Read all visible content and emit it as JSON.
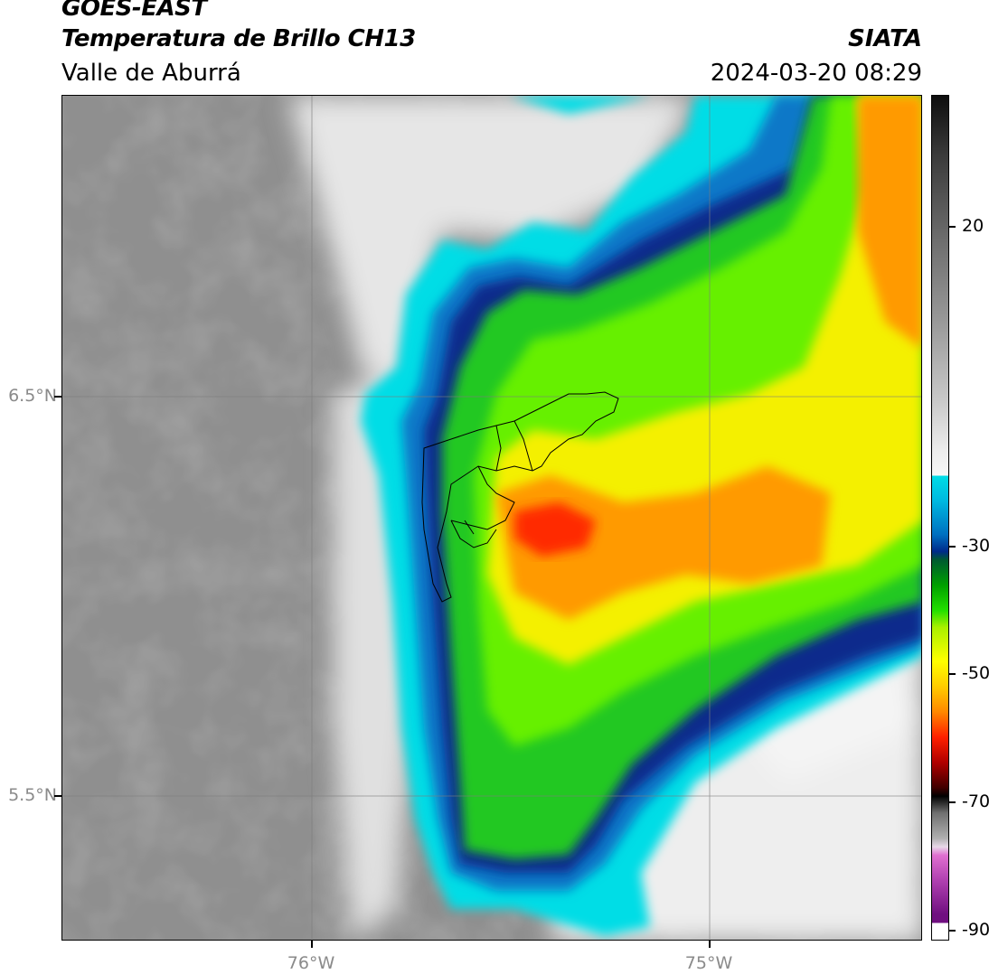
{
  "header": {
    "satellite": "GOES-EAST",
    "product": "Temperatura de Brillo CH13",
    "region": "Valle de Aburrá",
    "agency": "SIATA",
    "datetime": "2024-03-20 08:29"
  },
  "map": {
    "lat_labels": [
      "6.5°N",
      "5.5°N"
    ],
    "lon_labels": [
      "76°W",
      "75°W"
    ],
    "gridlines": true,
    "colors": {
      "clear_sky_gray": "#8c8c8c",
      "cloud_edge_cyan": "#00dde6",
      "cloud_blue": "#0070c0",
      "cloud_navy": "#002a8a",
      "cold_green": "#22e000",
      "cold_yellow": "#ffff00",
      "cold_orange": "#ff8800",
      "coldest_red": "#ff2000"
    }
  },
  "colorbar": {
    "tick_labels": [
      "20",
      "-30",
      "-50",
      "-70",
      "-90"
    ]
  }
}
